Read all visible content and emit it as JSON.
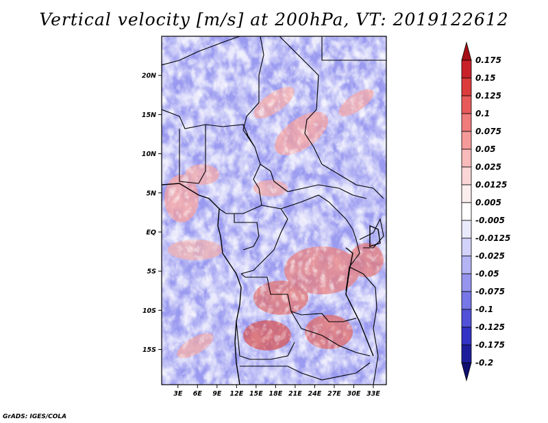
{
  "title": "Vertical velocity [m/s] at 200hPa, VT: 2019122612",
  "credit": "GrADS: IGES/COLA",
  "map": {
    "lon_labels": [
      "3E",
      "6E",
      "9E",
      "12E",
      "15E",
      "18E",
      "21E",
      "24E",
      "27E",
      "30E",
      "33E"
    ],
    "lon_values": [
      3,
      6,
      9,
      12,
      15,
      18,
      21,
      24,
      27,
      30,
      33
    ],
    "lat_labels": [
      "20N",
      "15N",
      "10N",
      "5N",
      "EQ",
      "5S",
      "10S",
      "15S"
    ],
    "lat_values": [
      20,
      15,
      10,
      5,
      0,
      -5,
      -10,
      -15
    ],
    "lon_range": [
      0.5,
      35
    ],
    "lat_range": [
      -19.5,
      25
    ]
  },
  "colorbar": {
    "labels": [
      "0.175",
      "0.15",
      "0.125",
      "0.1",
      "0.075",
      "0.05",
      "0.025",
      "0.0125",
      "0.005",
      "-0.005",
      "-0.0125",
      "-0.025",
      "-0.05",
      "-0.075",
      "-0.1",
      "-0.125",
      "-0.175",
      "-0.2"
    ],
    "colors": [
      "#a50f15",
      "#c8212a",
      "#dc3b3b",
      "#e85a5a",
      "#ef7b7b",
      "#f59a9a",
      "#f8baba",
      "#fbd6d6",
      "#fdeeee",
      "#ffffff",
      "#eaeafd",
      "#d2d2fa",
      "#b4b4f5",
      "#9595ee",
      "#7676e6",
      "#5252d8",
      "#3232c4",
      "#1d1d9c",
      "#0f0f70"
    ]
  }
}
